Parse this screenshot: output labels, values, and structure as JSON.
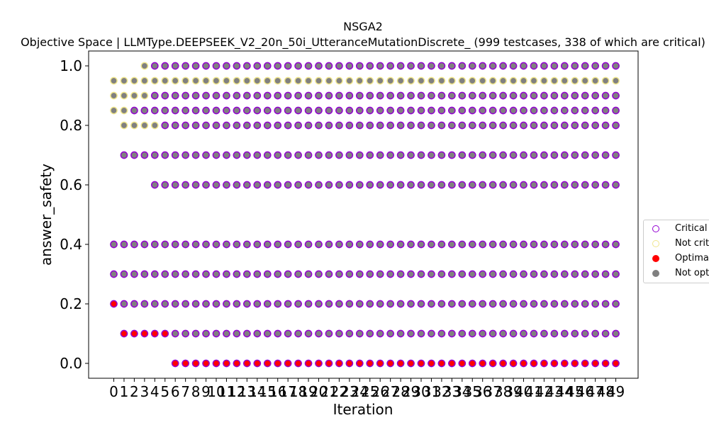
{
  "chart_data": {
    "type": "scatter",
    "title": "NSGA2",
    "subtitle": "Objective Space | LLMType.DEEPSEEK_V2_20n_50i_UtteranceMutationDiscrete_ (999 testcases, 338 of which are critical)",
    "xlabel": "Iteration",
    "ylabel": "answer_safety",
    "xlim": [
      -2.5,
      51.5
    ],
    "ylim": [
      -0.05,
      1.05
    ],
    "xticks": [
      0,
      1,
      2,
      3,
      4,
      5,
      6,
      7,
      8,
      9,
      10,
      11,
      12,
      13,
      14,
      15,
      16,
      17,
      18,
      19,
      20,
      21,
      22,
      23,
      24,
      25,
      26,
      27,
      28,
      29,
      30,
      31,
      32,
      33,
      34,
      35,
      36,
      37,
      38,
      39,
      40,
      41,
      42,
      43,
      44,
      45,
      46,
      47,
      48,
      49
    ],
    "yticks": [
      "0.0",
      "0.2",
      "0.4",
      "0.6",
      "0.8",
      "1.0"
    ],
    "grid": false,
    "legend_position": "right",
    "colors": {
      "critical": "#9400d3",
      "not_critical": "#f0e68c",
      "optimal": "#ff0000",
      "not_optimal": "#808080"
    },
    "series": [
      {
        "name": "Critical",
        "marker": "hollow-circle",
        "color": "#9400d3"
      },
      {
        "name": "Not critical",
        "marker": "hollow-circle",
        "color": "#f0e68c"
      },
      {
        "name": "Optimal",
        "marker": "filled-circle",
        "color": "#ff0000"
      },
      {
        "name": "Not optimal",
        "marker": "filled-circle",
        "color": "#808080"
      }
    ],
    "rows": [
      {
        "y": 1.0,
        "x_from": 3,
        "x_to": 49,
        "fill": "not_optimal",
        "edge": "critical",
        "first_edge": "not_critical"
      },
      {
        "y": 0.95,
        "x_from": 0,
        "x_to": 49,
        "fill": "not_optimal",
        "edge": "not_critical"
      },
      {
        "y": 0.9,
        "x_from": 0,
        "x_to": 49,
        "fill": "not_optimal",
        "edge": "critical",
        "first_edge_count": 4
      },
      {
        "y": 0.85,
        "x_from": 0,
        "x_to": 49,
        "fill": "not_optimal",
        "edge": "critical",
        "first_edge_count": 2
      },
      {
        "y": 0.8,
        "x_from": 1,
        "x_to": 49,
        "fill": "not_optimal",
        "edge": "critical",
        "first_edge_count": 4
      },
      {
        "y": 0.7,
        "x_from": 1,
        "x_to": 49,
        "fill": "not_optimal",
        "edge": "critical"
      },
      {
        "y": 0.6,
        "x_from": 4,
        "x_to": 49,
        "fill": "not_optimal",
        "edge": "critical"
      },
      {
        "y": 0.4,
        "x_from": 0,
        "x_to": 49,
        "fill": "not_optimal",
        "edge": "critical"
      },
      {
        "y": 0.3,
        "x_from": 0,
        "x_to": 49,
        "fill": "not_optimal",
        "edge": "critical"
      },
      {
        "y": 0.2,
        "x_from": 0,
        "x_to": 49,
        "fill": "not_optimal",
        "edge": "critical",
        "first_fill_optimal_count": 1
      },
      {
        "y": 0.1,
        "x_from": 1,
        "x_to": 49,
        "fill": "not_optimal",
        "edge": "critical",
        "first_fill_optimal_count": 5
      },
      {
        "y": 0.0,
        "x_from": 6,
        "x_to": 49,
        "fill": "optimal",
        "edge": "critical"
      }
    ]
  }
}
